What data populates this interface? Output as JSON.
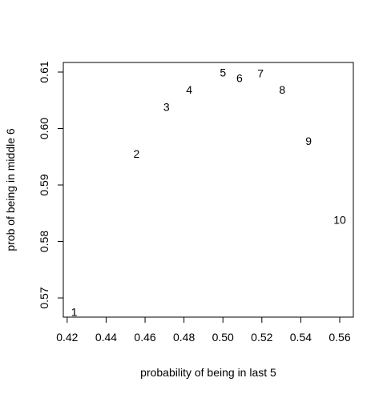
{
  "chart_data": {
    "type": "scatter",
    "xlabel": "probability of being in last 5",
    "ylabel": "prob of being in middle 6",
    "xlim": [
      0.418,
      0.567
    ],
    "ylim": [
      0.5666,
      0.6117
    ],
    "x_ticks": [
      "0.42",
      "0.44",
      "0.46",
      "0.48",
      "0.50",
      "0.52",
      "0.54",
      "0.56"
    ],
    "y_ticks": [
      "0.57",
      "0.58",
      "0.59",
      "0.60",
      "0.61"
    ],
    "grid": false,
    "points": [
      {
        "label": "1",
        "x": 0.4236,
        "y": 0.5675
      },
      {
        "label": "2",
        "x": 0.4556,
        "y": 0.5955
      },
      {
        "label": "3",
        "x": 0.471,
        "y": 0.6038
      },
      {
        "label": "4",
        "x": 0.4827,
        "y": 0.6069
      },
      {
        "label": "5",
        "x": 0.5,
        "y": 0.6099
      },
      {
        "label": "6",
        "x": 0.5085,
        "y": 0.6089
      },
      {
        "label": "7",
        "x": 0.5193,
        "y": 0.6098
      },
      {
        "label": "8",
        "x": 0.5305,
        "y": 0.6069
      },
      {
        "label": "9",
        "x": 0.544,
        "y": 0.5978
      },
      {
        "label": "10",
        "x": 0.56,
        "y": 0.5838
      }
    ]
  }
}
